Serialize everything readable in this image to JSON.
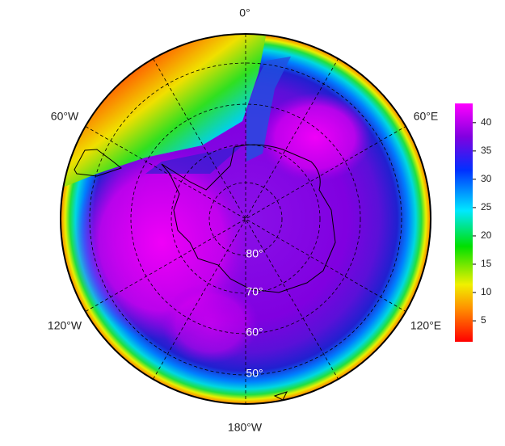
{
  "map": {
    "longitude_labels": [
      "0°",
      "60°E",
      "120°E",
      "180°W",
      "120°W",
      "60°W"
    ],
    "latitude_labels": [
      "80°",
      "70°",
      "60°",
      "50°"
    ],
    "colorbar": {
      "lim": [
        1.3,
        43.4
      ],
      "ticks": [
        5,
        10,
        15,
        20,
        25,
        30,
        35,
        40
      ]
    }
  }
}
